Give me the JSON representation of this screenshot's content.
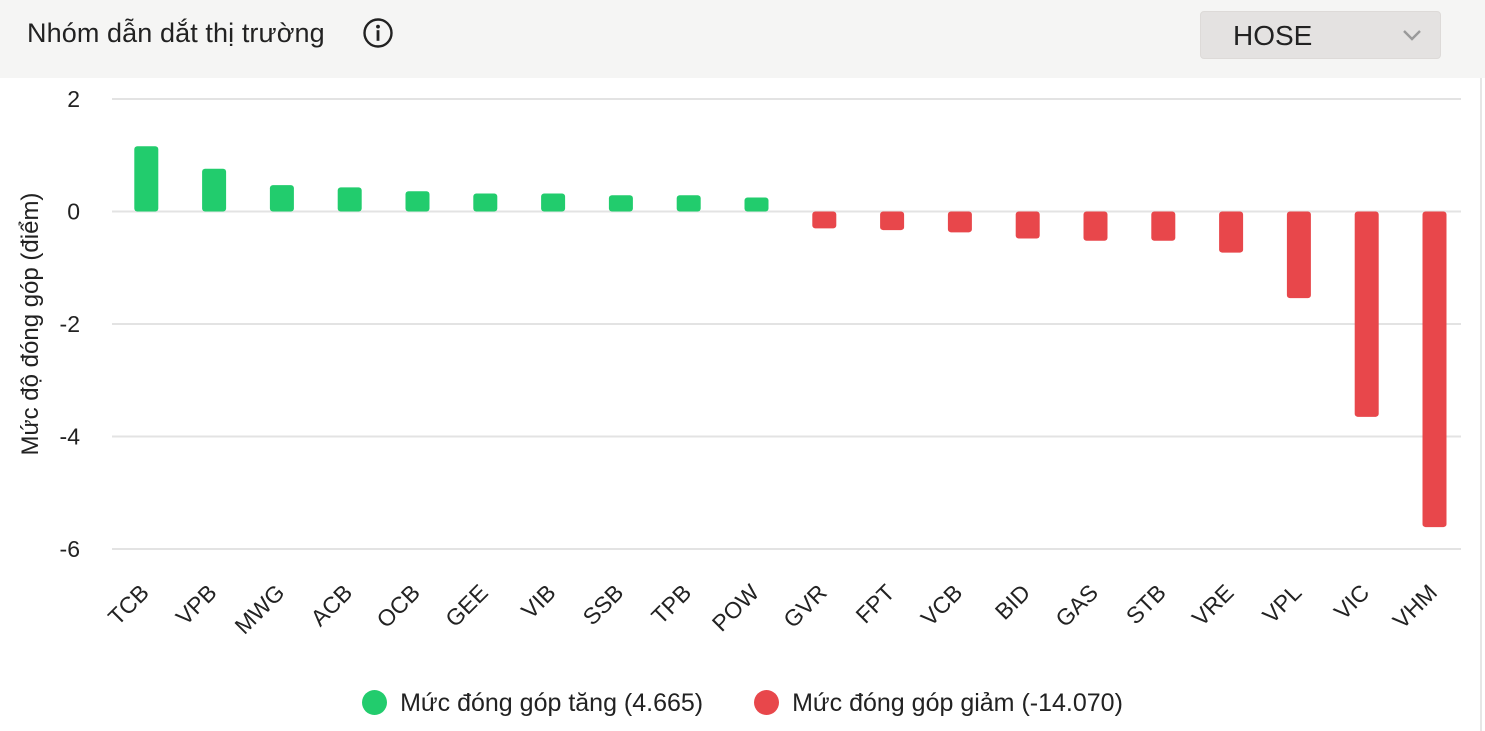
{
  "header": {
    "title": "Nhóm dẫn dắt thị trường",
    "info_icon": "info-circle-icon",
    "exchange_select": {
      "value": "HOSE",
      "icon": "chevron-down-icon"
    }
  },
  "colors": {
    "positive": "#22cc6d",
    "negative": "#e8474b",
    "grid": "#e3e3e3"
  },
  "chart_data": {
    "type": "bar",
    "title": "",
    "xlabel": "",
    "ylabel": "Mức độ đóng góp (điểm)",
    "ylim": [
      -6,
      2
    ],
    "yticks": [
      2,
      0,
      -2,
      -4,
      -6
    ],
    "grid": true,
    "legend_position": "bottom-center",
    "categories": [
      "TCB",
      "VPB",
      "MWG",
      "ACB",
      "OCB",
      "GEE",
      "VIB",
      "SSB",
      "TPB",
      "POW",
      "GVR",
      "FPT",
      "VCB",
      "BID",
      "GAS",
      "STB",
      "VRE",
      "VPL",
      "VIC",
      "VHM"
    ],
    "values": [
      1.16,
      0.76,
      0.47,
      0.43,
      0.36,
      0.32,
      0.32,
      0.29,
      0.29,
      0.25,
      -0.3,
      -0.33,
      -0.37,
      -0.48,
      -0.52,
      -0.52,
      -0.73,
      -1.54,
      -3.65,
      -5.61
    ],
    "series": [
      {
        "name": "Mức đóng góp tăng (4.665)",
        "color": "#22cc6d"
      },
      {
        "name": "Mức đóng góp giảm (-14.070)",
        "color": "#e8474b"
      }
    ]
  }
}
